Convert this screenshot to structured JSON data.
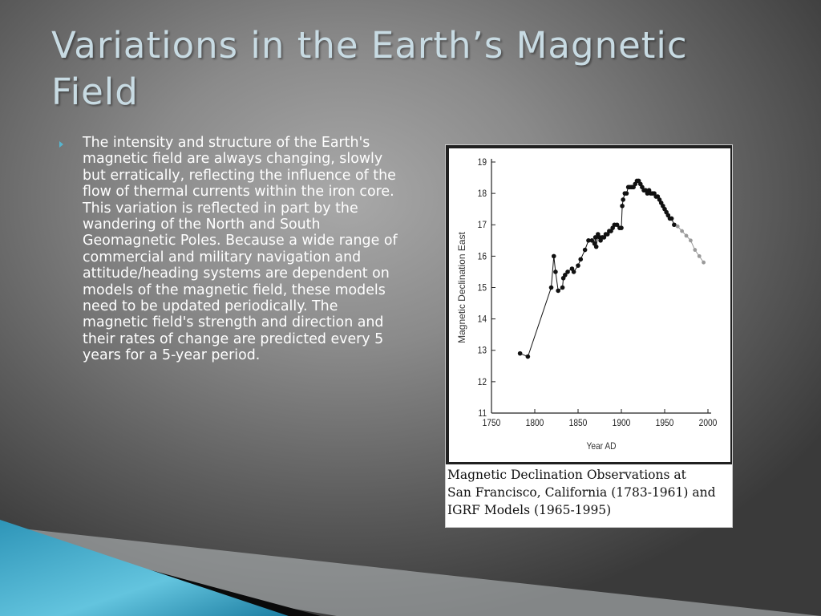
{
  "slide": {
    "title": "Variations in the Earth’s Magnetic Field",
    "bullet": "The intensity and structure of the Earth's magnetic field are always changing, slowly but erratically, reflecting the influence of the flow of thermal currents within the iron core. This variation is reflected in part by the wandering of the North and South Geomagnetic Poles. Because a wide range of commercial and military navigation and attitude/heading systems are dependent on models of the magnetic field, these models need to be updated periodically. The magnetic field's strength and direction and their rates of change are predicted every 5 years for a 5-year period."
  },
  "figure": {
    "caption_lines": [
      "Magnetic Declination Observations at",
      "San Francisco, California (1783-1961) and",
      "IGRF Models (1965-1995)"
    ]
  },
  "colors": {
    "title": "#c8dbe3",
    "bullet_marker": "#57b5cf",
    "observed": "#111111",
    "model": "#9a9a9a"
  },
  "chart_data": {
    "type": "line",
    "title": "",
    "xlabel": "Year AD",
    "ylabel": "Magnetic Declination East",
    "xlim": [
      1750,
      2000
    ],
    "ylim": [
      11,
      19
    ],
    "xticks": [
      1750,
      1800,
      1850,
      1900,
      1950,
      2000
    ],
    "yticks": [
      11,
      12,
      13,
      14,
      15,
      16,
      17,
      18,
      19
    ],
    "grid": false,
    "series": [
      {
        "name": "",
        "color": "#111111",
        "x": [
          1783,
          1792,
          1819,
          1822,
          1824,
          1827,
          1832,
          1833,
          1835,
          1838,
          1843,
          1845,
          1850,
          1853,
          1858,
          1862,
          1866,
          1869,
          1870,
          1871,
          1873,
          1875,
          1876,
          1878,
          1880,
          1882,
          1884,
          1886,
          1888,
          1890,
          1892,
          1895,
          1898,
          1900,
          1901,
          1902,
          1904,
          1906,
          1908,
          1910,
          1912,
          1914,
          1916,
          1918,
          1920,
          1922,
          1924,
          1926,
          1928,
          1930,
          1932,
          1934,
          1936,
          1938,
          1940,
          1942,
          1944,
          1946,
          1948,
          1950,
          1952,
          1954,
          1956,
          1958,
          1961
        ],
        "y": [
          12.9,
          12.8,
          15.0,
          16.0,
          15.5,
          14.9,
          15.0,
          15.3,
          15.4,
          15.5,
          15.6,
          15.5,
          15.7,
          15.9,
          16.2,
          16.5,
          16.5,
          16.4,
          16.6,
          16.3,
          16.7,
          16.6,
          16.5,
          16.6,
          16.6,
          16.7,
          16.7,
          16.8,
          16.8,
          16.9,
          17.0,
          17.0,
          16.9,
          16.9,
          17.6,
          17.8,
          18.0,
          18.0,
          18.2,
          18.2,
          18.2,
          18.2,
          18.3,
          18.4,
          18.4,
          18.3,
          18.2,
          18.1,
          18.1,
          18.0,
          18.1,
          18.0,
          18.0,
          18.0,
          17.9,
          17.9,
          17.8,
          17.7,
          17.6,
          17.5,
          17.4,
          17.3,
          17.2,
          17.2,
          17.0
        ]
      },
      {
        "name": "",
        "color": "#9a9a9a",
        "x": [
          1965,
          1970,
          1975,
          1980,
          1985,
          1990,
          1995
        ],
        "y": [
          16.95,
          16.8,
          16.65,
          16.5,
          16.2,
          16.0,
          15.8
        ]
      }
    ]
  }
}
